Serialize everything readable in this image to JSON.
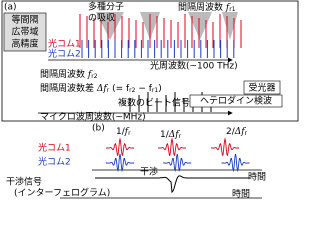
{
  "panel_a": {
    "label": "(a)",
    "features": [
      "等間隔",
      "広帯域",
      "高精度"
    ],
    "absorption": [
      "多種分子",
      "の吸収"
    ],
    "spacing_1": {
      "text": "間隔周波数",
      "var": "f",
      "sub": "r1"
    },
    "comb_1": "光コム1",
    "comb_2": "光コム2",
    "optical_axis": "光周波数(~100 THz)",
    "spacing_2": {
      "text": "間隔周波数",
      "var": "f",
      "sub": "r2"
    },
    "difference": {
      "text": "間隔周波数差",
      "var": "Δf",
      "sub": "r",
      "formula": "(= f",
      "sub2": "r2",
      "minus": " − f",
      "sub3": "r1",
      "close": ")"
    },
    "detector": "受光器",
    "heterodyne": "ヘテロダイン検波",
    "beats": "複数のビート信号",
    "microwave_axis": "マイクロ波周波数(~MHz)"
  },
  "panel_b": {
    "label": "(b)",
    "comb_1": "光コム1",
    "comb_2": "光コム2",
    "period_1": {
      "num": "1/",
      "var": "f",
      "sub": "r"
    },
    "period_2": {
      "num": "1/",
      "var": "Δf",
      "sub": "r"
    },
    "period_3": {
      "num": "2/",
      "var": "Δf",
      "sub": "r"
    },
    "interference": "干渉",
    "signal": [
      "干渉信号",
      "(インターフェログラム)"
    ],
    "time_1": "時間",
    "time_2": "時間"
  }
}
